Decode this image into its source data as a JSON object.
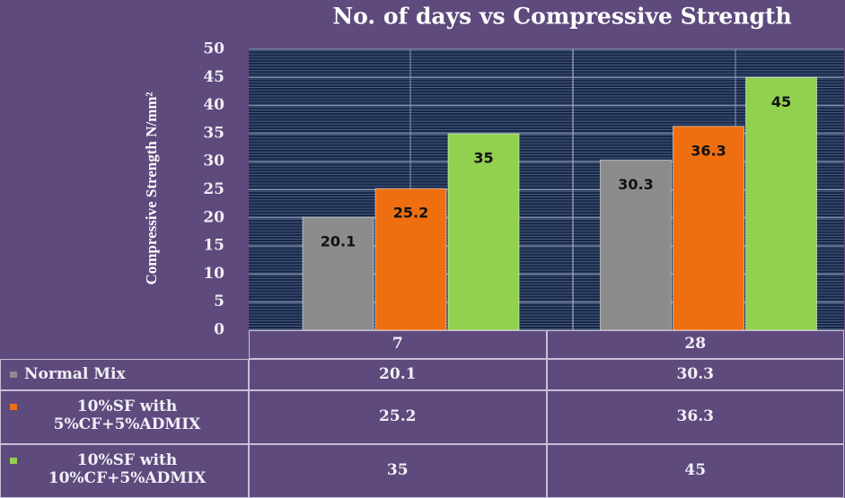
{
  "chart_data": {
    "type": "bar",
    "title": "No. of days vs Compressive Strength",
    "y_label": "Compressive Strength N/mm²",
    "categories": [
      "7",
      "28"
    ],
    "series": [
      {
        "name": "Normal Mix",
        "color": "#8c8c8c",
        "values": [
          20.1,
          30.3
        ]
      },
      {
        "name": "10%SF with 5%CF+5%ADMIX",
        "color": "#ef6f10",
        "values": [
          25.2,
          36.3
        ]
      },
      {
        "name": "10%SF with 10%CF+5%ADMIX",
        "color": "#92d050",
        "values": [
          35,
          45
        ]
      }
    ],
    "ylim": [
      0,
      50
    ],
    "yticks": [
      0,
      5,
      10,
      15,
      20,
      25,
      30,
      35,
      40,
      45,
      50
    ],
    "grid": true,
    "data_table": true
  }
}
